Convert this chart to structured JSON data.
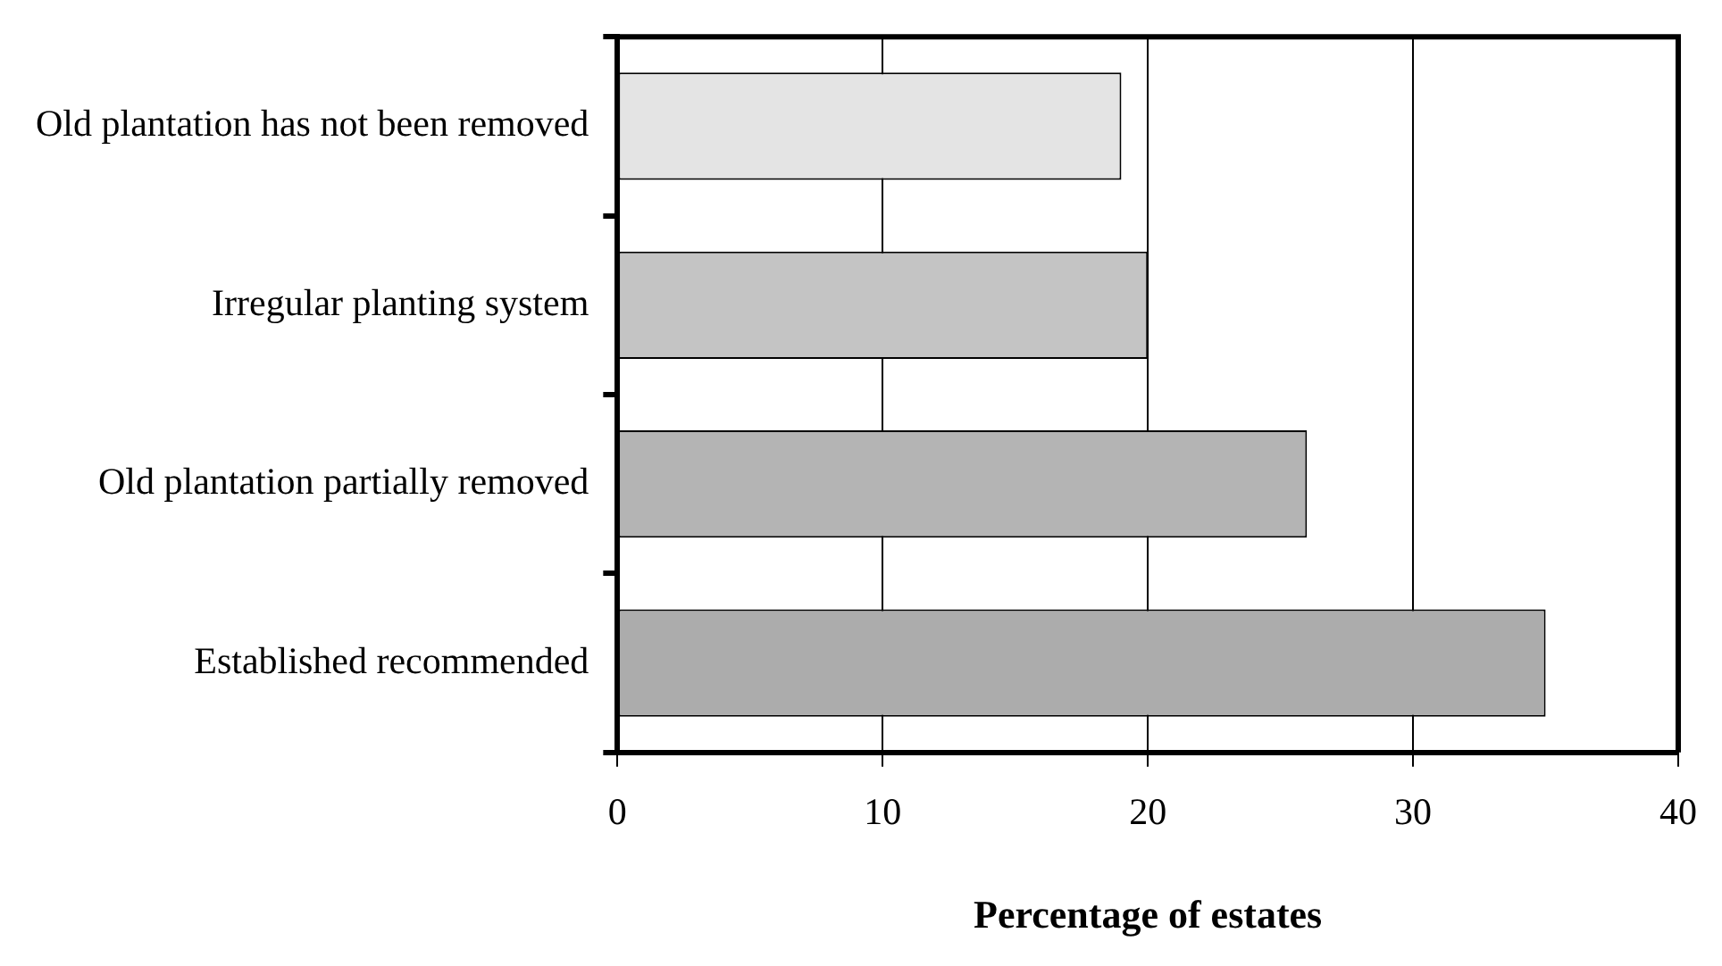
{
  "chart_data": {
    "type": "bar",
    "orientation": "horizontal",
    "categories": [
      "Old plantation has not been removed",
      "Irregular planting system",
      "Old plantation partially removed",
      "Established recommended"
    ],
    "values": [
      19,
      20,
      26,
      35
    ],
    "colors": [
      "#e4e4e4",
      "#c4c4c4",
      "#b4b4b4",
      "#acacac"
    ],
    "xlabel": "Percentage of estates",
    "xlim": [
      0,
      40
    ],
    "xticks": [
      0,
      10,
      20,
      30,
      40
    ],
    "grid": "x",
    "legend": false
  }
}
